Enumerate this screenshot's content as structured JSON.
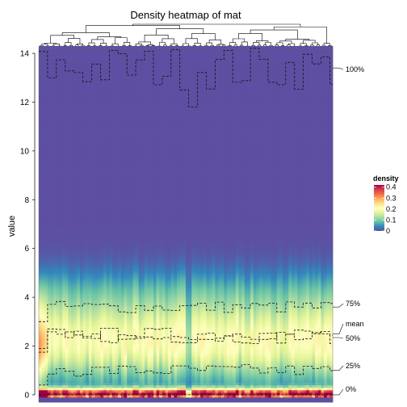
{
  "chart_data": {
    "type": "heatmap",
    "title": "Density heatmap of mat",
    "ylabel": "value",
    "xlabel": "",
    "ylim": [
      -0.3,
      14.2
    ],
    "y_ticks": [
      0,
      2,
      4,
      6,
      8,
      10,
      12,
      14
    ],
    "n_columns": 100,
    "legend": {
      "title": "density",
      "ticks": [
        0.4,
        0.3,
        0.2,
        0.1,
        0
      ],
      "range": [
        0,
        0.42
      ],
      "colors": [
        "#5E4FA2",
        "#3288BD",
        "#66C2A5",
        "#ABDDA4",
        "#E6F598",
        "#FFFFBF",
        "#FEE08B",
        "#FDAE61",
        "#F46D43",
        "#D53E4F",
        "#9E0142"
      ],
      "placement": "right"
    },
    "quantile_lines": [
      {
        "label": "100%",
        "value": 13.4
      },
      {
        "label": "75%",
        "value": 3.6
      },
      {
        "label": "mean",
        "value": 2.5
      },
      {
        "label": "50%",
        "value": 2.35
      },
      {
        "label": "25%",
        "value": 1.0
      },
      {
        "label": "0%",
        "value": 0
      }
    ],
    "dendrogram": "column clustering tree (top)"
  }
}
